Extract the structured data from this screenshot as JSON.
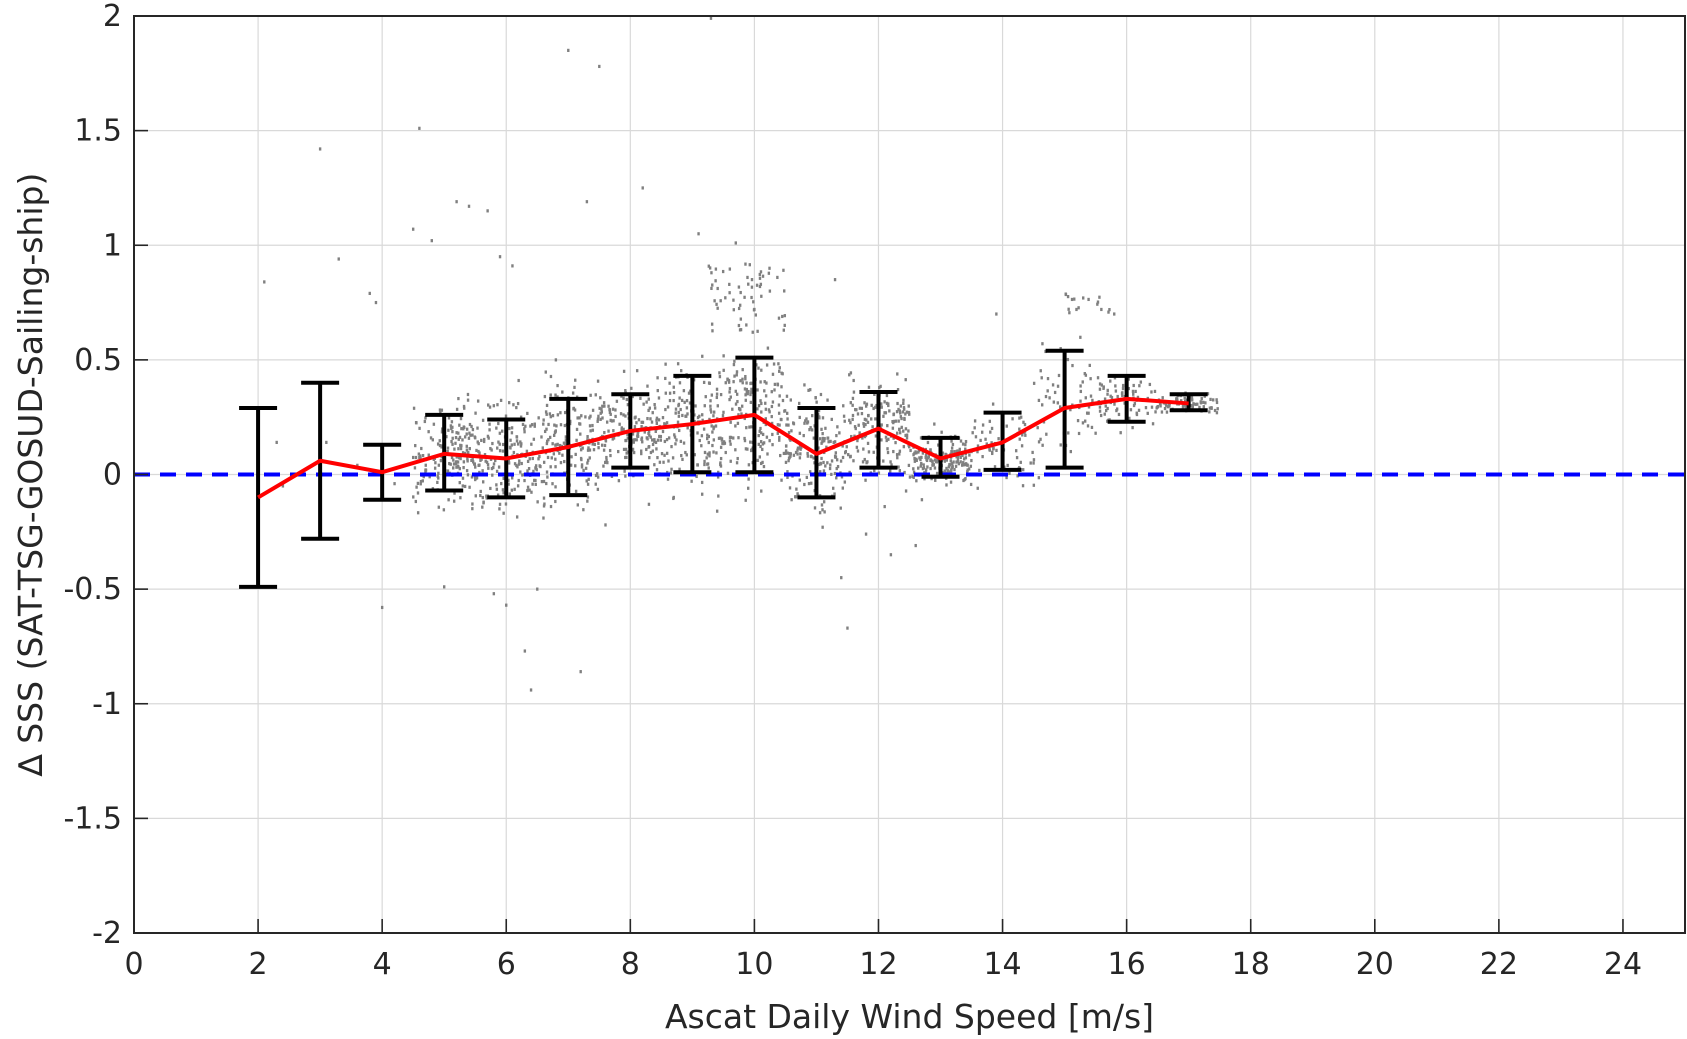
{
  "chart_data": {
    "type": "scatter",
    "title": "",
    "xlabel": "Ascat Daily Wind Speed [m/s]",
    "ylabel": "∆ SSS (SAT-TSG-GOSUD-Sailing-ship)",
    "xlim": [
      0,
      25
    ],
    "ylim": [
      -2,
      2
    ],
    "xticks": [
      "0",
      "2",
      "4",
      "6",
      "8",
      "10",
      "12",
      "14",
      "16",
      "18",
      "20",
      "22",
      "24"
    ],
    "yticks": [
      "2",
      "1.5",
      "1",
      "0.5",
      "0",
      "-0.5",
      "-1",
      "-1.5",
      "-2"
    ],
    "grid": true,
    "colors": {
      "scatter": "#808080",
      "mean_line": "#ff0000",
      "error_bars": "#000000",
      "zero_line": "#0000ff",
      "grid": "#d9d9d9",
      "axes": "#262626"
    },
    "binned_means": {
      "x": [
        2,
        3,
        4,
        5,
        6,
        7,
        8,
        9,
        10,
        11,
        12,
        13,
        14,
        15,
        16,
        17
      ],
      "mean": [
        -0.1,
        0.06,
        0.01,
        0.09,
        0.07,
        0.12,
        0.19,
        0.22,
        0.26,
        0.09,
        0.2,
        0.07,
        0.14,
        0.29,
        0.33,
        0.31
      ],
      "lower": [
        -0.49,
        -0.28,
        -0.11,
        -0.07,
        -0.1,
        -0.09,
        0.03,
        0.01,
        0.01,
        -0.1,
        0.03,
        -0.01,
        0.02,
        0.03,
        0.23,
        0.28
      ],
      "upper": [
        0.29,
        0.4,
        0.13,
        0.26,
        0.24,
        0.33,
        0.35,
        0.43,
        0.51,
        0.29,
        0.36,
        0.16,
        0.27,
        0.54,
        0.43,
        0.35
      ]
    },
    "reference_line": {
      "y": 0,
      "style": "dashed"
    },
    "scatter_points": [
      [
        2.1,
        0.84
      ],
      [
        3.0,
        1.42
      ],
      [
        3.3,
        0.94
      ],
      [
        3.8,
        0.79
      ],
      [
        3.9,
        0.75
      ],
      [
        4.0,
        -0.58
      ],
      [
        4.5,
        1.07
      ],
      [
        4.6,
        1.51
      ],
      [
        4.8,
        1.02
      ],
      [
        5.2,
        1.19
      ],
      [
        5.4,
        1.17
      ],
      [
        5.7,
        1.15
      ],
      [
        5.9,
        0.95
      ],
      [
        6.1,
        0.91
      ],
      [
        7.0,
        1.85
      ],
      [
        7.5,
        1.78
      ],
      [
        7.3,
        1.19
      ],
      [
        8.2,
        1.25
      ],
      [
        9.3,
        1.99
      ],
      [
        9.1,
        1.05
      ],
      [
        9.7,
        1.01
      ],
      [
        10.0,
        0.72
      ],
      [
        11.3,
        0.85
      ],
      [
        13.9,
        0.7
      ],
      [
        15.3,
        0.77
      ],
      [
        15.8,
        0.7
      ],
      [
        5.0,
        -0.49
      ],
      [
        5.8,
        -0.52
      ],
      [
        6.0,
        -0.57
      ],
      [
        6.3,
        -0.77
      ],
      [
        6.4,
        -0.94
      ],
      [
        6.5,
        -0.5
      ],
      [
        7.2,
        -0.86
      ],
      [
        11.5,
        -0.67
      ],
      [
        11.4,
        -0.45
      ],
      [
        12.2,
        -0.35
      ],
      [
        12.6,
        -0.31
      ],
      [
        2.3,
        0.14
      ],
      [
        2.4,
        -0.05
      ],
      [
        3.1,
        0.14
      ],
      [
        3.6,
        0.04
      ],
      [
        4.2,
        -0.04
      ],
      [
        4.7,
        0.02
      ],
      [
        5.5,
        0.16
      ],
      [
        5.8,
        0.3
      ],
      [
        6.2,
        0.41
      ],
      [
        6.8,
        0.5
      ],
      [
        7.1,
        0.38
      ],
      [
        7.4,
        0.28
      ],
      [
        7.9,
        0.45
      ],
      [
        8.4,
        0.29
      ],
      [
        8.8,
        0.4
      ],
      [
        9.2,
        0.3
      ],
      [
        9.6,
        0.36
      ],
      [
        10.4,
        0.45
      ],
      [
        10.9,
        0.37
      ],
      [
        11.6,
        0.41
      ],
      [
        12.4,
        0.31
      ],
      [
        12.9,
        0.22
      ],
      [
        13.4,
        0.13
      ],
      [
        14.3,
        0.25
      ],
      [
        14.7,
        0.34
      ],
      [
        15.6,
        0.39
      ],
      [
        16.4,
        0.36
      ],
      [
        16.8,
        0.33
      ],
      [
        5.3,
        -0.05
      ],
      [
        5.9,
        -0.13
      ],
      [
        6.6,
        -0.19
      ],
      [
        7.6,
        -0.22
      ],
      [
        8.3,
        -0.13
      ],
      [
        8.7,
        -0.1
      ],
      [
        9.4,
        -0.16
      ],
      [
        9.9,
        -0.06
      ],
      [
        10.6,
        -0.11
      ],
      [
        11.1,
        -0.23
      ],
      [
        11.8,
        -0.26
      ],
      [
        12.1,
        -0.14
      ],
      [
        12.7,
        -0.11
      ],
      [
        13.6,
        -0.06
      ],
      [
        14.5,
        0.05
      ],
      [
        15.1,
        0.1
      ],
      [
        15.5,
        0.18
      ],
      [
        16.2,
        0.28
      ],
      [
        17.0,
        0.3
      ]
    ]
  }
}
